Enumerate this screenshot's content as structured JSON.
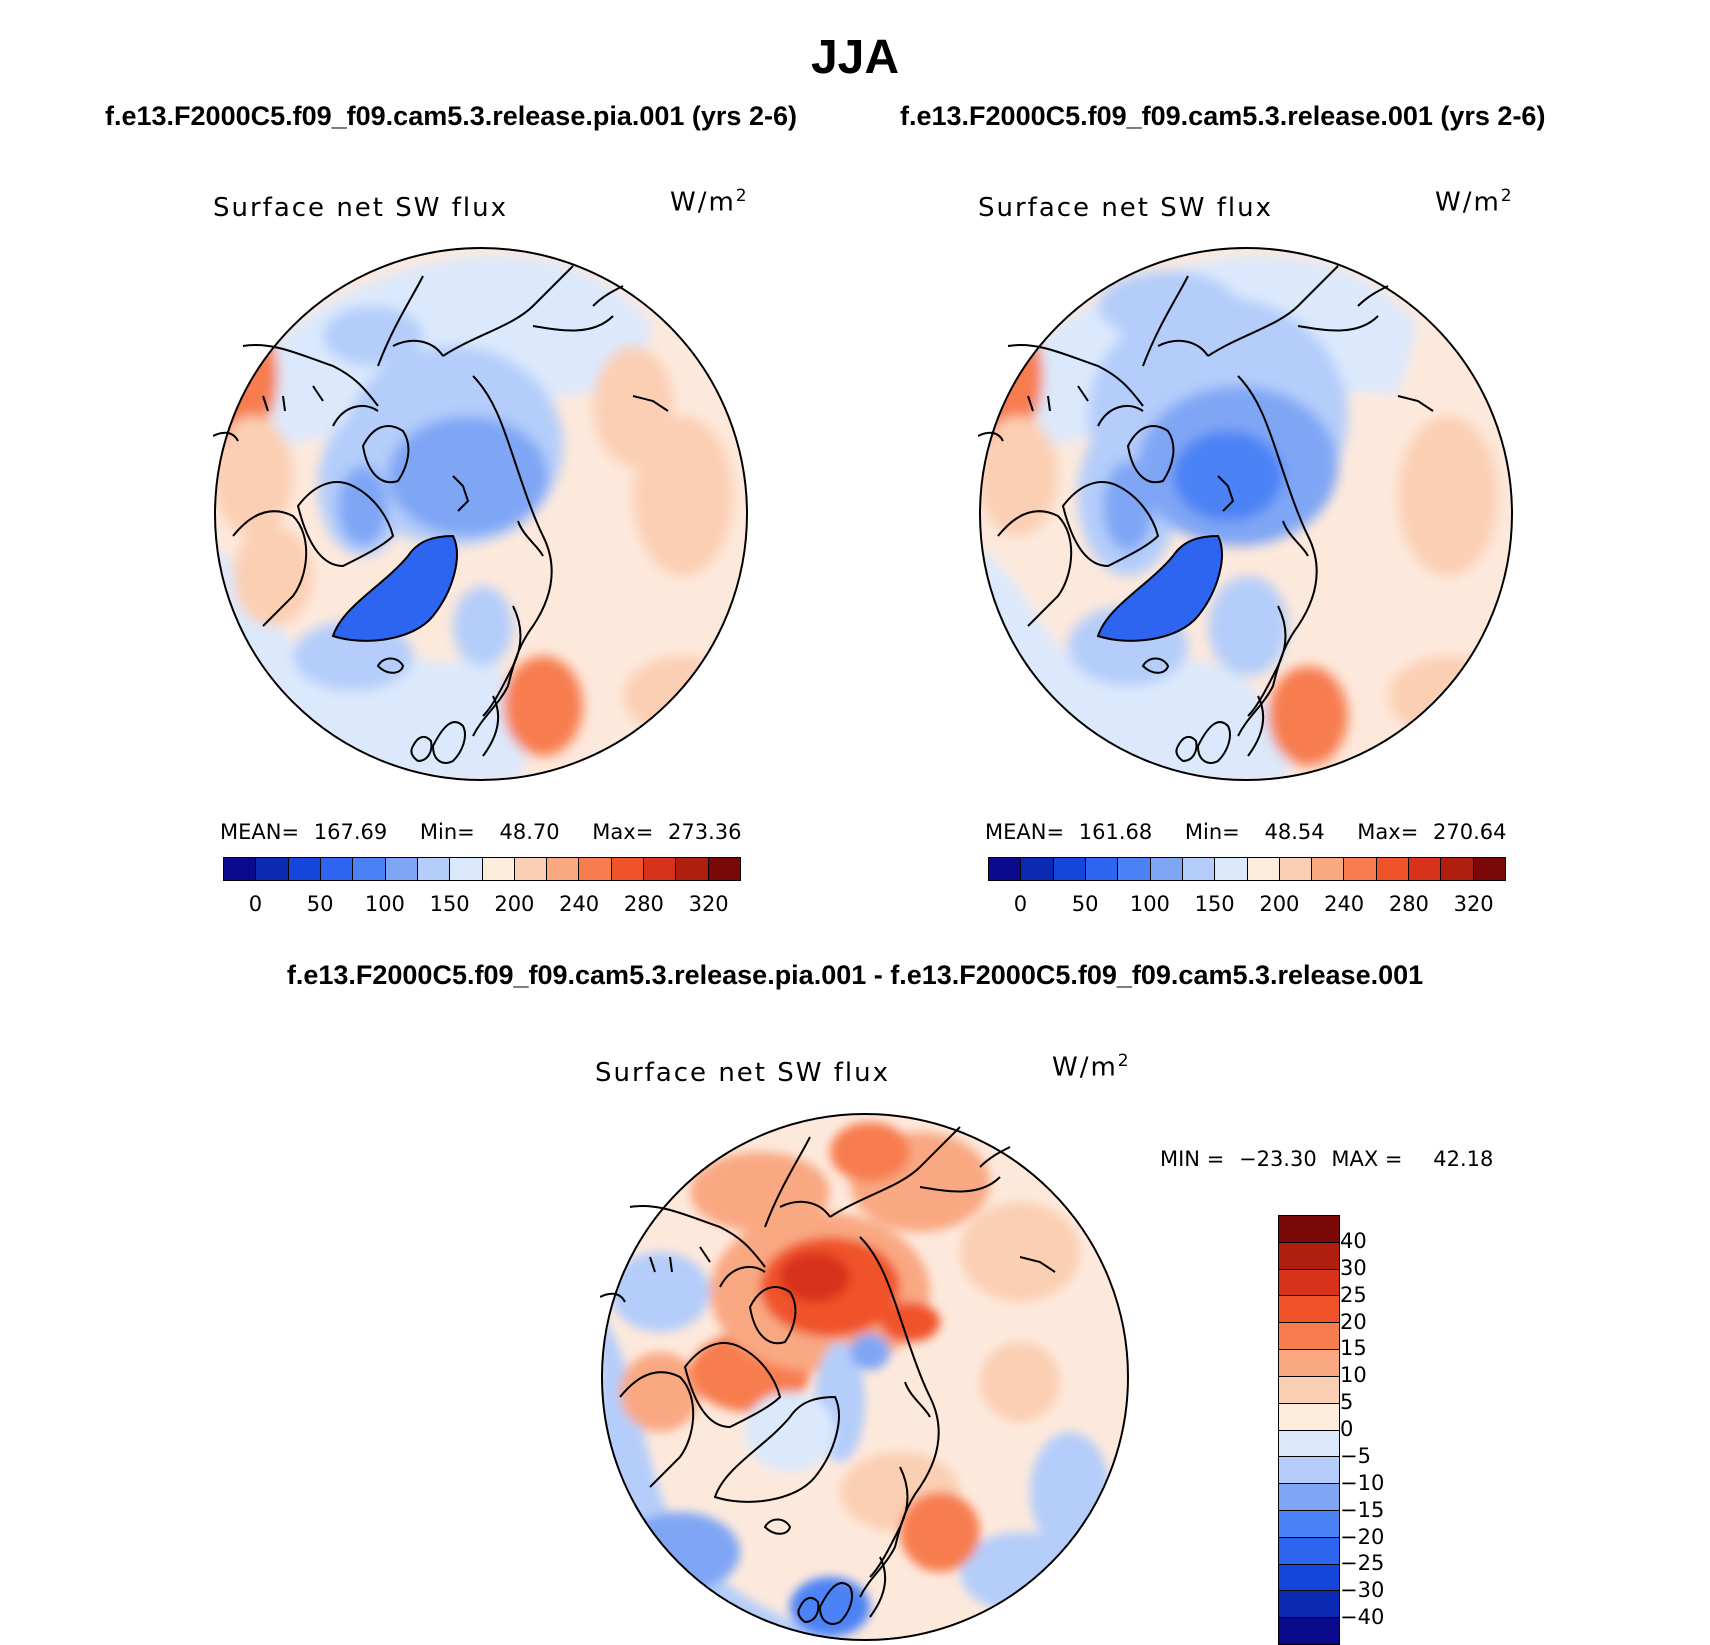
{
  "title": "JJA",
  "case_a_title": "f.e13.F2000C5.f09_f09.cam5.3.release.pia.001 (yrs 2-6)",
  "case_b_title": "f.e13.F2000C5.f09_f09.cam5.3.release.001 (yrs 2-6)",
  "diff_title": "f.e13.F2000C5.f09_f09.cam5.3.release.pia.001 - f.e13.F2000C5.f09_f09.cam5.3.release.001",
  "variable": "Surface net SW flux",
  "units_base": "W/m",
  "units_exp": "2",
  "panel_a": {
    "mean_label": "MEAN=",
    "mean": "167.69",
    "min_label": "Min=",
    "min": "48.70",
    "max_label": "Max=",
    "max": "273.36"
  },
  "panel_b": {
    "mean_label": "MEAN=",
    "mean": "161.68",
    "min_label": "Min=",
    "min": "48.54",
    "max_label": "Max=",
    "max": "270.64"
  },
  "panel_diff": {
    "min_label": "MIN =",
    "min": "−23.30",
    "max_label": "MAX =",
    "max": "42.18"
  },
  "abs_colorbar": {
    "colors": [
      "#0a0a8c",
      "#0a2ab4",
      "#1446dc",
      "#2d64f0",
      "#4b82f5",
      "#7fa6f5",
      "#b4cdfa",
      "#dce9fc",
      "#fdebdc",
      "#fbcfb4",
      "#f9a882",
      "#f77d4f",
      "#f0532a",
      "#d8321a",
      "#b01e0f",
      "#7a0808"
    ],
    "ticks": [
      "0",
      "50",
      "100",
      "150",
      "200",
      "240",
      "280",
      "320"
    ]
  },
  "diff_colorbar": {
    "colors": [
      "#7a0808",
      "#b01e0f",
      "#d8321a",
      "#f0532a",
      "#f77d4f",
      "#f9a882",
      "#fbcfb4",
      "#fdebdc",
      "#dce9fc",
      "#b4cdfa",
      "#7fa6f5",
      "#4b82f5",
      "#2d64f0",
      "#1446dc",
      "#0a2ab4",
      "#0a0a8c"
    ],
    "ticks": [
      "40",
      "30",
      "25",
      "20",
      "15",
      "10",
      "5",
      "0",
      "−5",
      "−10",
      "−15",
      "−20",
      "−25",
      "−30",
      "−40"
    ]
  }
}
